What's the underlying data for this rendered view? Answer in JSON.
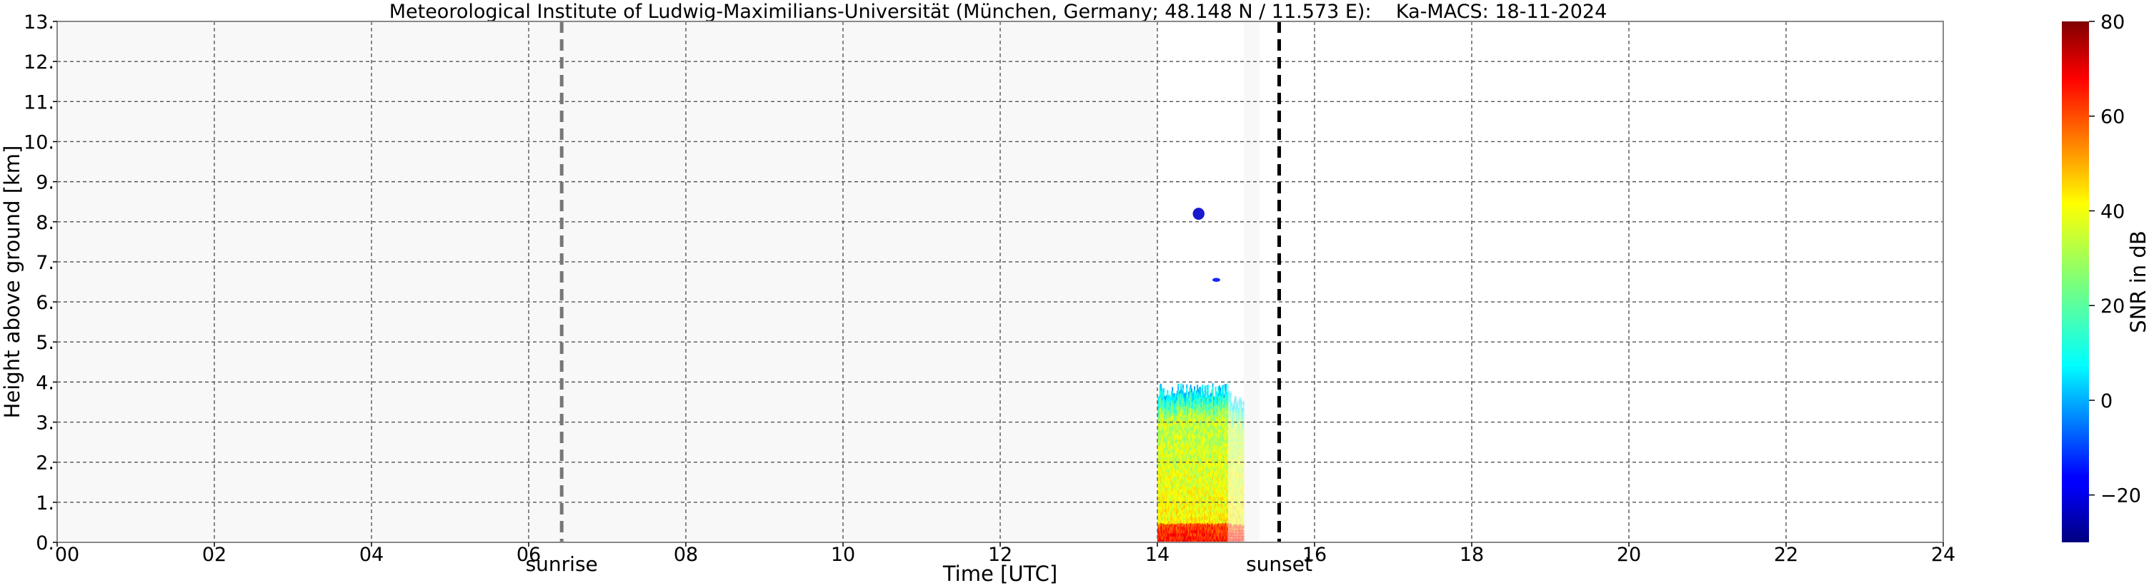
{
  "chart_data": {
    "type": "heatmap",
    "title": "Meteorological Institute of Ludwig-Maximilians-Universität (München, Germany; 48.148 N / 11.573 E):    Ka-MACS: 18-11-2024",
    "xlabel": "Time [UTC]",
    "ylabel": "Height above ground [km]",
    "xlim": [
      0,
      24
    ],
    "ylim": [
      0,
      13
    ],
    "grid": true,
    "x_ticks": [
      "00",
      "02",
      "04",
      "06",
      "08",
      "10",
      "12",
      "14",
      "16",
      "18",
      "20",
      "22",
      "24"
    ],
    "y_ticks": [
      "0.",
      "1.",
      "2.",
      "3.",
      "4.",
      "5.",
      "6.",
      "7.",
      "8.",
      "9.",
      "10.",
      "11.",
      "12.",
      "13."
    ],
    "no_data_periods": [
      [
        0,
        14
      ],
      [
        15.1,
        15.3
      ]
    ],
    "events": [
      {
        "label": "sunrise",
        "time": 6.42,
        "color": "#777777"
      },
      {
        "label": "sunset",
        "time": 15.55,
        "color": "#000000"
      }
    ],
    "echoes": [
      {
        "t_start": 14.0,
        "t_end": 15.1,
        "h_bottom": 0,
        "h_top": 3.8,
        "snr_near_ground": 65,
        "snr_mid": 35,
        "snr_top": 5
      },
      {
        "t_start": 14.45,
        "t_end": 14.6,
        "h_bottom": 8.05,
        "h_top": 8.35,
        "snr": -22
      },
      {
        "t_start": 14.7,
        "t_end": 14.8,
        "h_bottom": 6.5,
        "h_top": 6.6,
        "snr": -15
      }
    ],
    "colorbar": {
      "label": "SNR in dB",
      "min": -30,
      "max": 80,
      "ticks": [
        "80",
        "60",
        "40",
        "20",
        "0",
        "−20"
      ],
      "tick_values": [
        80,
        60,
        40,
        20,
        0,
        -20
      ],
      "colormap": "jet"
    }
  }
}
